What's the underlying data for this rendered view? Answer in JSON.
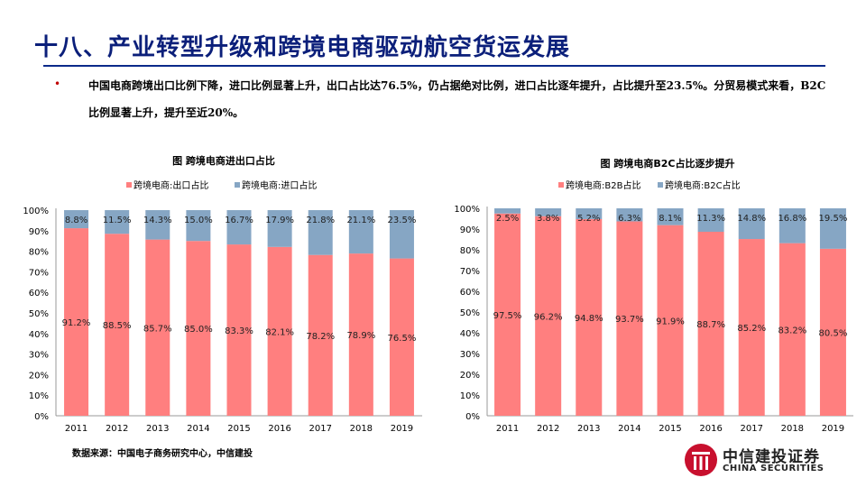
{
  "header": {
    "title": "十八、产业转型升级和跨境电商驱动航空货运发展"
  },
  "bullet": {
    "text": "中国电商跨境出口比例下降，进口比例显著上升，出口占比达76.5%，仍占据绝对比例，进口占比逐年提升，占比提升至23.5%。分贸易模式来看，B2C比例显著上升，提升至近20%。"
  },
  "footer": {
    "source": "数据来源：中国电子商务研究中心，中信建投",
    "logo_cn": "中信建投证券",
    "logo_en": "CHINA SECURITIES"
  },
  "colors": {
    "primary": "#ff7f7f",
    "secondary": "#86a6c4",
    "title": "#0b1f7a"
  },
  "chart_data": [
    {
      "type": "bar",
      "stacked": true,
      "title": "图  跨境电商进出口占比",
      "categories": [
        "2011",
        "2012",
        "2013",
        "2014",
        "2015",
        "2016",
        "2017",
        "2018",
        "2019"
      ],
      "series": [
        {
          "name": "跨境电商:出口占比",
          "values": [
            91.2,
            88.5,
            85.7,
            85.0,
            83.3,
            82.1,
            78.2,
            78.9,
            76.5
          ]
        },
        {
          "name": "跨境电商:进口占比",
          "values": [
            8.8,
            11.5,
            14.3,
            15.0,
            16.7,
            17.9,
            21.8,
            21.1,
            23.5
          ]
        }
      ],
      "ylim": [
        0,
        100
      ],
      "yticks": [
        "0%",
        "10%",
        "20%",
        "30%",
        "40%",
        "50%",
        "60%",
        "70%",
        "80%",
        "90%",
        "100%"
      ],
      "legend": "top"
    },
    {
      "type": "bar",
      "stacked": true,
      "title": "图  跨境电商B2C占比逐步提升",
      "categories": [
        "2011",
        "2012",
        "2013",
        "2014",
        "2015",
        "2016",
        "2017",
        "2018",
        "2019"
      ],
      "series": [
        {
          "name": "跨境电商:B2B占比",
          "values": [
            97.5,
            96.2,
            94.8,
            93.7,
            91.9,
            88.7,
            85.2,
            83.2,
            80.5
          ]
        },
        {
          "name": "跨境电商:B2C占比",
          "values": [
            2.5,
            3.8,
            5.2,
            6.3,
            8.1,
            11.3,
            14.8,
            16.8,
            19.5
          ]
        }
      ],
      "ylim": [
        0,
        100
      ],
      "yticks": [
        "0%",
        "10%",
        "20%",
        "30%",
        "40%",
        "50%",
        "60%",
        "70%",
        "80%",
        "90%",
        "100%"
      ],
      "legend": "top"
    }
  ]
}
